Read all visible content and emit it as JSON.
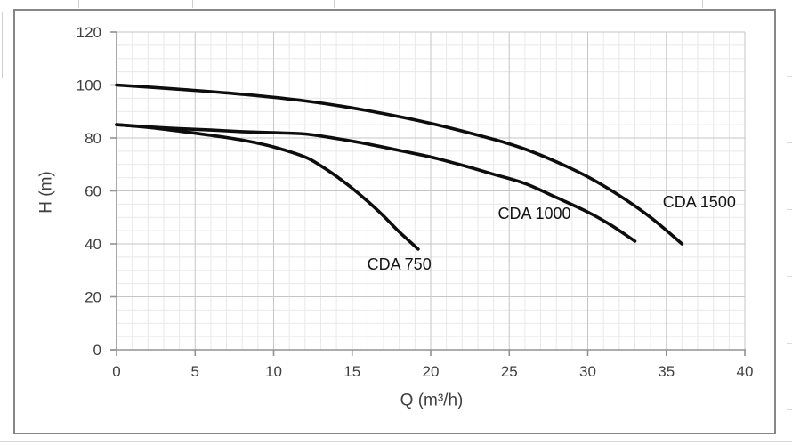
{
  "colors": {
    "curve": "#0d0d0d",
    "grid_minor": "#e8e8e8",
    "grid_major": "#c6c6c6",
    "axis": "#929292",
    "tick_text": "#3f3f3f",
    "curve_label_text": "#141414",
    "frame_border": "#878787"
  },
  "chart_data": {
    "type": "line",
    "title": "",
    "xlabel": "Q (m³/h)",
    "ylabel": "H (m)",
    "xlim": [
      0,
      40
    ],
    "ylim": [
      0,
      120
    ],
    "x_ticks": [
      0,
      5,
      10,
      15,
      20,
      25,
      30,
      35,
      40
    ],
    "y_ticks": [
      0,
      20,
      40,
      60,
      80,
      100,
      120
    ],
    "grid": {
      "minor_x_step": 1,
      "minor_y_step": 5,
      "major_x_step": 5,
      "major_y_step": 20
    },
    "legend_position": "inline-labels",
    "series": [
      {
        "name": "CDA 750",
        "label_at": {
          "x": 18.0,
          "y": 32.3
        },
        "points": [
          [
            0,
            85
          ],
          [
            2,
            84
          ],
          [
            4,
            82.6
          ],
          [
            6,
            81
          ],
          [
            8,
            79.2
          ],
          [
            10,
            76.6
          ],
          [
            12,
            72.8
          ],
          [
            13,
            69.5
          ],
          [
            14,
            65.5
          ],
          [
            15,
            61
          ],
          [
            16,
            56
          ],
          [
            17,
            50.5
          ],
          [
            18,
            44.5
          ],
          [
            19.2,
            38
          ]
        ]
      },
      {
        "name": "CDA 1000",
        "label_at": {
          "x": 26.6,
          "y": 51.4
        },
        "points": [
          [
            0,
            85
          ],
          [
            2,
            84.2
          ],
          [
            4,
            83.5
          ],
          [
            6,
            83
          ],
          [
            8,
            82.4
          ],
          [
            10,
            82
          ],
          [
            12,
            81.5
          ],
          [
            14,
            79.8
          ],
          [
            16,
            77.7
          ],
          [
            18,
            75.3
          ],
          [
            20,
            72.8
          ],
          [
            22,
            69.7
          ],
          [
            24,
            66.3
          ],
          [
            26,
            62.8
          ],
          [
            28,
            57.5
          ],
          [
            30,
            52
          ],
          [
            31.5,
            47
          ],
          [
            33,
            41
          ]
        ]
      },
      {
        "name": "CDA 1500",
        "label_at": {
          "x": 37.1,
          "y": 55.8
        },
        "points": [
          [
            0,
            100
          ],
          [
            4,
            98.4
          ],
          [
            8,
            96.5
          ],
          [
            12,
            94
          ],
          [
            16,
            90.3
          ],
          [
            20,
            85.5
          ],
          [
            24,
            79.5
          ],
          [
            26,
            75.8
          ],
          [
            28,
            71
          ],
          [
            30,
            65.3
          ],
          [
            32,
            58.3
          ],
          [
            34,
            50
          ],
          [
            36,
            40
          ]
        ]
      }
    ]
  }
}
